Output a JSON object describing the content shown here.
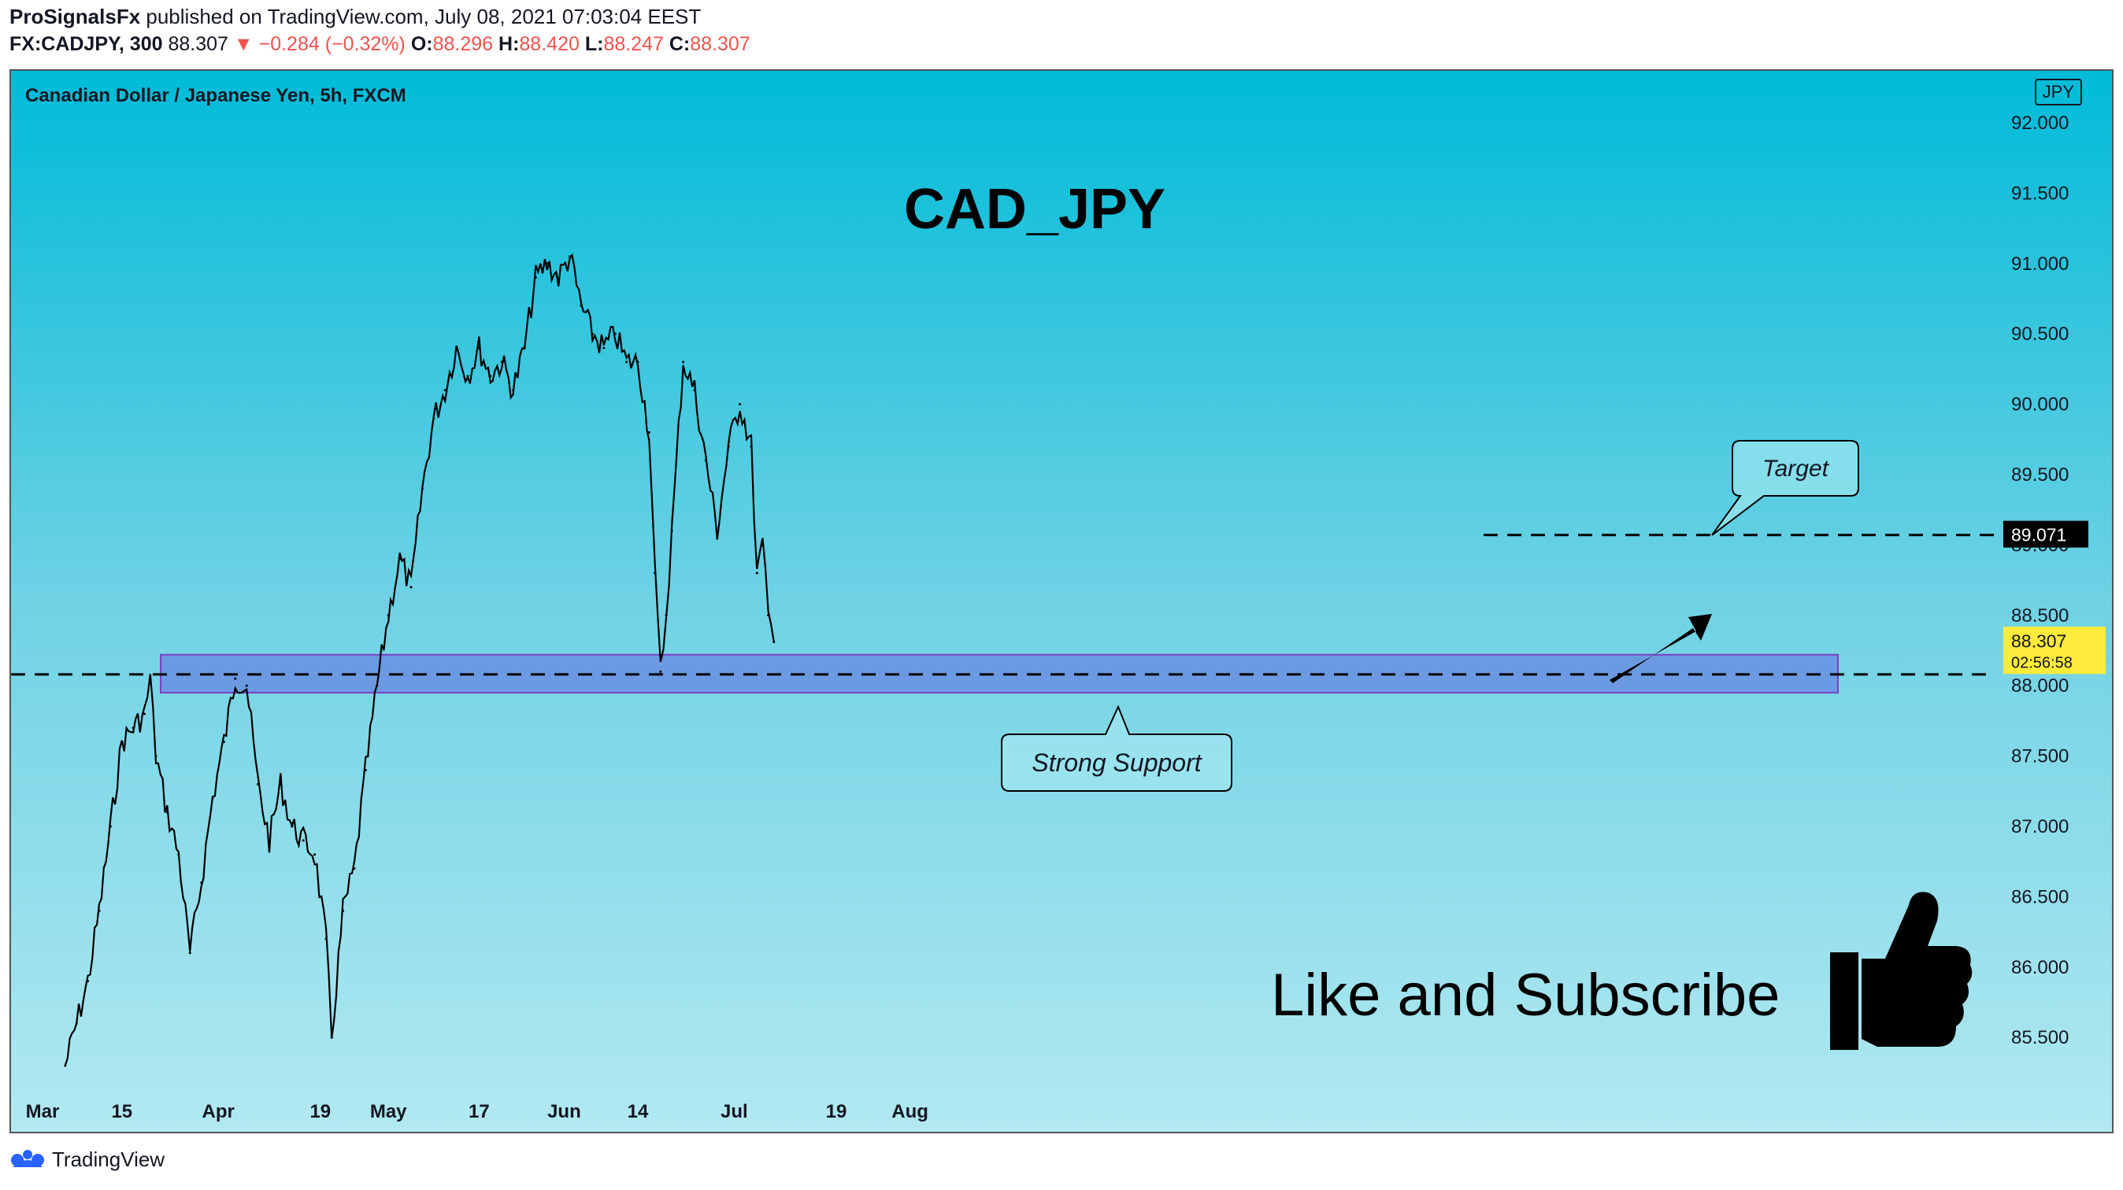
{
  "header": {
    "publisher": "ProSignalsFx",
    "published_text": "published on TradingView.com, July 08, 2021 07:03:04 EEST",
    "symbol": "FX:CADJPY, 300",
    "last": "88.307",
    "change": "−0.284 (−0.32%)",
    "open_label": "O:",
    "open": "88.296",
    "high_label": "H:",
    "high": "88.420",
    "low_label": "L:",
    "low": "88.247",
    "close_label": "C:",
    "close": "88.307"
  },
  "chart_subtitle": "Canadian Dollar / Japanese Yen, 5h, FXCM",
  "currency_badge": "JPY",
  "footer_brand": "TradingView",
  "colors": {
    "accent_red": "#ef5350",
    "support_zone": "#6a8fe0",
    "price_label": "#ffeb3b"
  },
  "chart_data": {
    "type": "candlestick",
    "title": "CAD_JPY",
    "ylim": [
      85.2,
      92.2
    ],
    "y_ticks": [
      "92.000",
      "91.500",
      "91.000",
      "90.500",
      "90.000",
      "89.500",
      "89.000",
      "88.500",
      "88.000",
      "87.500",
      "87.000",
      "86.500",
      "86.000",
      "85.500"
    ],
    "x_tick_labels": [
      "Mar",
      "15",
      "Apr",
      "19",
      "May",
      "17",
      "Jun",
      "14",
      "Jul",
      "19",
      "Aug"
    ],
    "series": [
      {
        "values": [
          [
            "2021-03-05",
            85.3
          ],
          [
            "2021-03-07",
            85.6
          ],
          [
            "2021-03-09",
            85.9
          ],
          [
            "2021-03-11",
            86.4
          ],
          [
            "2021-03-13",
            87.0
          ],
          [
            "2021-03-15",
            87.6
          ],
          [
            "2021-03-17",
            87.7
          ],
          [
            "2021-03-19",
            87.8
          ],
          [
            "2021-03-20",
            88.05
          ],
          [
            "2021-03-21",
            87.5
          ],
          [
            "2021-03-23",
            87.1
          ],
          [
            "2021-03-25",
            86.8
          ],
          [
            "2021-03-27",
            86.1
          ],
          [
            "2021-03-29",
            86.6
          ],
          [
            "2021-03-31",
            87.2
          ],
          [
            "2021-04-02",
            87.6
          ],
          [
            "2021-04-04",
            88.05
          ],
          [
            "2021-04-06",
            88.0
          ],
          [
            "2021-04-08",
            87.3
          ],
          [
            "2021-04-10",
            86.9
          ],
          [
            "2021-04-12",
            87.3
          ],
          [
            "2021-04-14",
            87.0
          ],
          [
            "2021-04-16",
            86.9
          ],
          [
            "2021-04-18",
            86.8
          ],
          [
            "2021-04-20",
            86.2
          ],
          [
            "2021-04-21",
            85.5
          ],
          [
            "2021-04-23",
            86.4
          ],
          [
            "2021-04-25",
            86.7
          ],
          [
            "2021-04-27",
            87.4
          ],
          [
            "2021-04-29",
            88.0
          ],
          [
            "2021-05-01",
            88.5
          ],
          [
            "2021-05-03",
            88.9
          ],
          [
            "2021-05-05",
            88.7
          ],
          [
            "2021-05-07",
            89.4
          ],
          [
            "2021-05-09",
            89.9
          ],
          [
            "2021-05-11",
            90.1
          ],
          [
            "2021-05-13",
            90.4
          ],
          [
            "2021-05-15",
            90.2
          ],
          [
            "2021-05-17",
            90.4
          ],
          [
            "2021-05-19",
            90.2
          ],
          [
            "2021-05-21",
            90.3
          ],
          [
            "2021-05-23",
            90.1
          ],
          [
            "2021-05-25",
            90.4
          ],
          [
            "2021-05-27",
            90.9
          ],
          [
            "2021-05-29",
            91.0
          ],
          [
            "2021-05-31",
            90.9
          ],
          [
            "2021-06-02",
            91.05
          ],
          [
            "2021-06-04",
            90.7
          ],
          [
            "2021-06-06",
            90.5
          ],
          [
            "2021-06-08",
            90.4
          ],
          [
            "2021-06-10",
            90.5
          ],
          [
            "2021-06-12",
            90.3
          ],
          [
            "2021-06-14",
            90.3
          ],
          [
            "2021-06-16",
            89.8
          ],
          [
            "2021-06-17",
            88.8
          ],
          [
            "2021-06-18",
            88.1
          ],
          [
            "2021-06-19",
            88.5
          ],
          [
            "2021-06-20",
            89.1
          ],
          [
            "2021-06-22",
            90.3
          ],
          [
            "2021-06-24",
            90.1
          ],
          [
            "2021-06-26",
            89.6
          ],
          [
            "2021-06-28",
            89.1
          ],
          [
            "2021-06-30",
            89.7
          ],
          [
            "2021-07-02",
            90.0
          ],
          [
            "2021-07-04",
            89.7
          ],
          [
            "2021-07-05",
            88.8
          ],
          [
            "2021-07-06",
            89.0
          ],
          [
            "2021-07-07",
            88.5
          ],
          [
            "2021-07-08",
            88.31
          ]
        ]
      }
    ],
    "last_price_label": "88.307",
    "countdown": "02:56:58",
    "target_level": 89.071,
    "target_label": "89.071",
    "support_zone": [
      87.95,
      88.22
    ],
    "support_line": 88.08,
    "annotations": [
      "Target",
      "Strong Support",
      "Like and Subscribe"
    ]
  }
}
